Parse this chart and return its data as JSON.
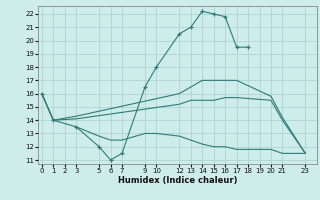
{
  "xlabel": "Humidex (Indice chaleur)",
  "background_color": "#ceecea",
  "grid_color": "#aacfcc",
  "line_color": "#2e7d72",
  "line1_x": [
    0,
    1,
    3,
    5,
    6,
    7,
    9,
    10,
    12,
    13,
    14,
    15,
    16,
    17,
    18
  ],
  "line1_y": [
    16,
    14,
    13.5,
    12,
    11,
    11.5,
    16.5,
    18,
    20.5,
    21,
    22.2,
    22.0,
    21.8,
    19.5,
    19.5
  ],
  "line2_x": [
    0,
    1,
    3,
    12,
    13,
    14,
    15,
    16,
    17,
    20,
    21,
    23
  ],
  "line2_y": [
    16,
    14,
    14.3,
    16.0,
    16.5,
    17.0,
    17.0,
    17.0,
    17.0,
    15.8,
    14.2,
    11.5
  ],
  "line3_x": [
    0,
    1,
    3,
    12,
    13,
    14,
    15,
    16,
    17,
    20,
    21,
    23
  ],
  "line3_y": [
    16,
    14,
    14.1,
    15.2,
    15.5,
    15.5,
    15.5,
    15.7,
    15.7,
    15.5,
    14.0,
    11.5
  ],
  "line4_x": [
    3,
    5,
    6,
    7,
    9,
    10,
    12,
    13,
    14,
    15,
    16,
    17,
    20,
    21,
    23
  ],
  "line4_y": [
    13.5,
    12.8,
    12.5,
    12.5,
    13.0,
    13.0,
    12.8,
    12.5,
    12.2,
    12.0,
    12.0,
    11.8,
    11.8,
    11.5,
    11.5
  ],
  "xlim": [
    -0.3,
    24.0
  ],
  "ylim": [
    10.7,
    22.6
  ],
  "xticks": [
    0,
    1,
    2,
    3,
    5,
    6,
    7,
    9,
    10,
    12,
    13,
    14,
    15,
    16,
    17,
    18,
    19,
    20,
    21,
    23
  ],
  "yticks": [
    11,
    12,
    13,
    14,
    15,
    16,
    17,
    18,
    19,
    20,
    21,
    22
  ]
}
